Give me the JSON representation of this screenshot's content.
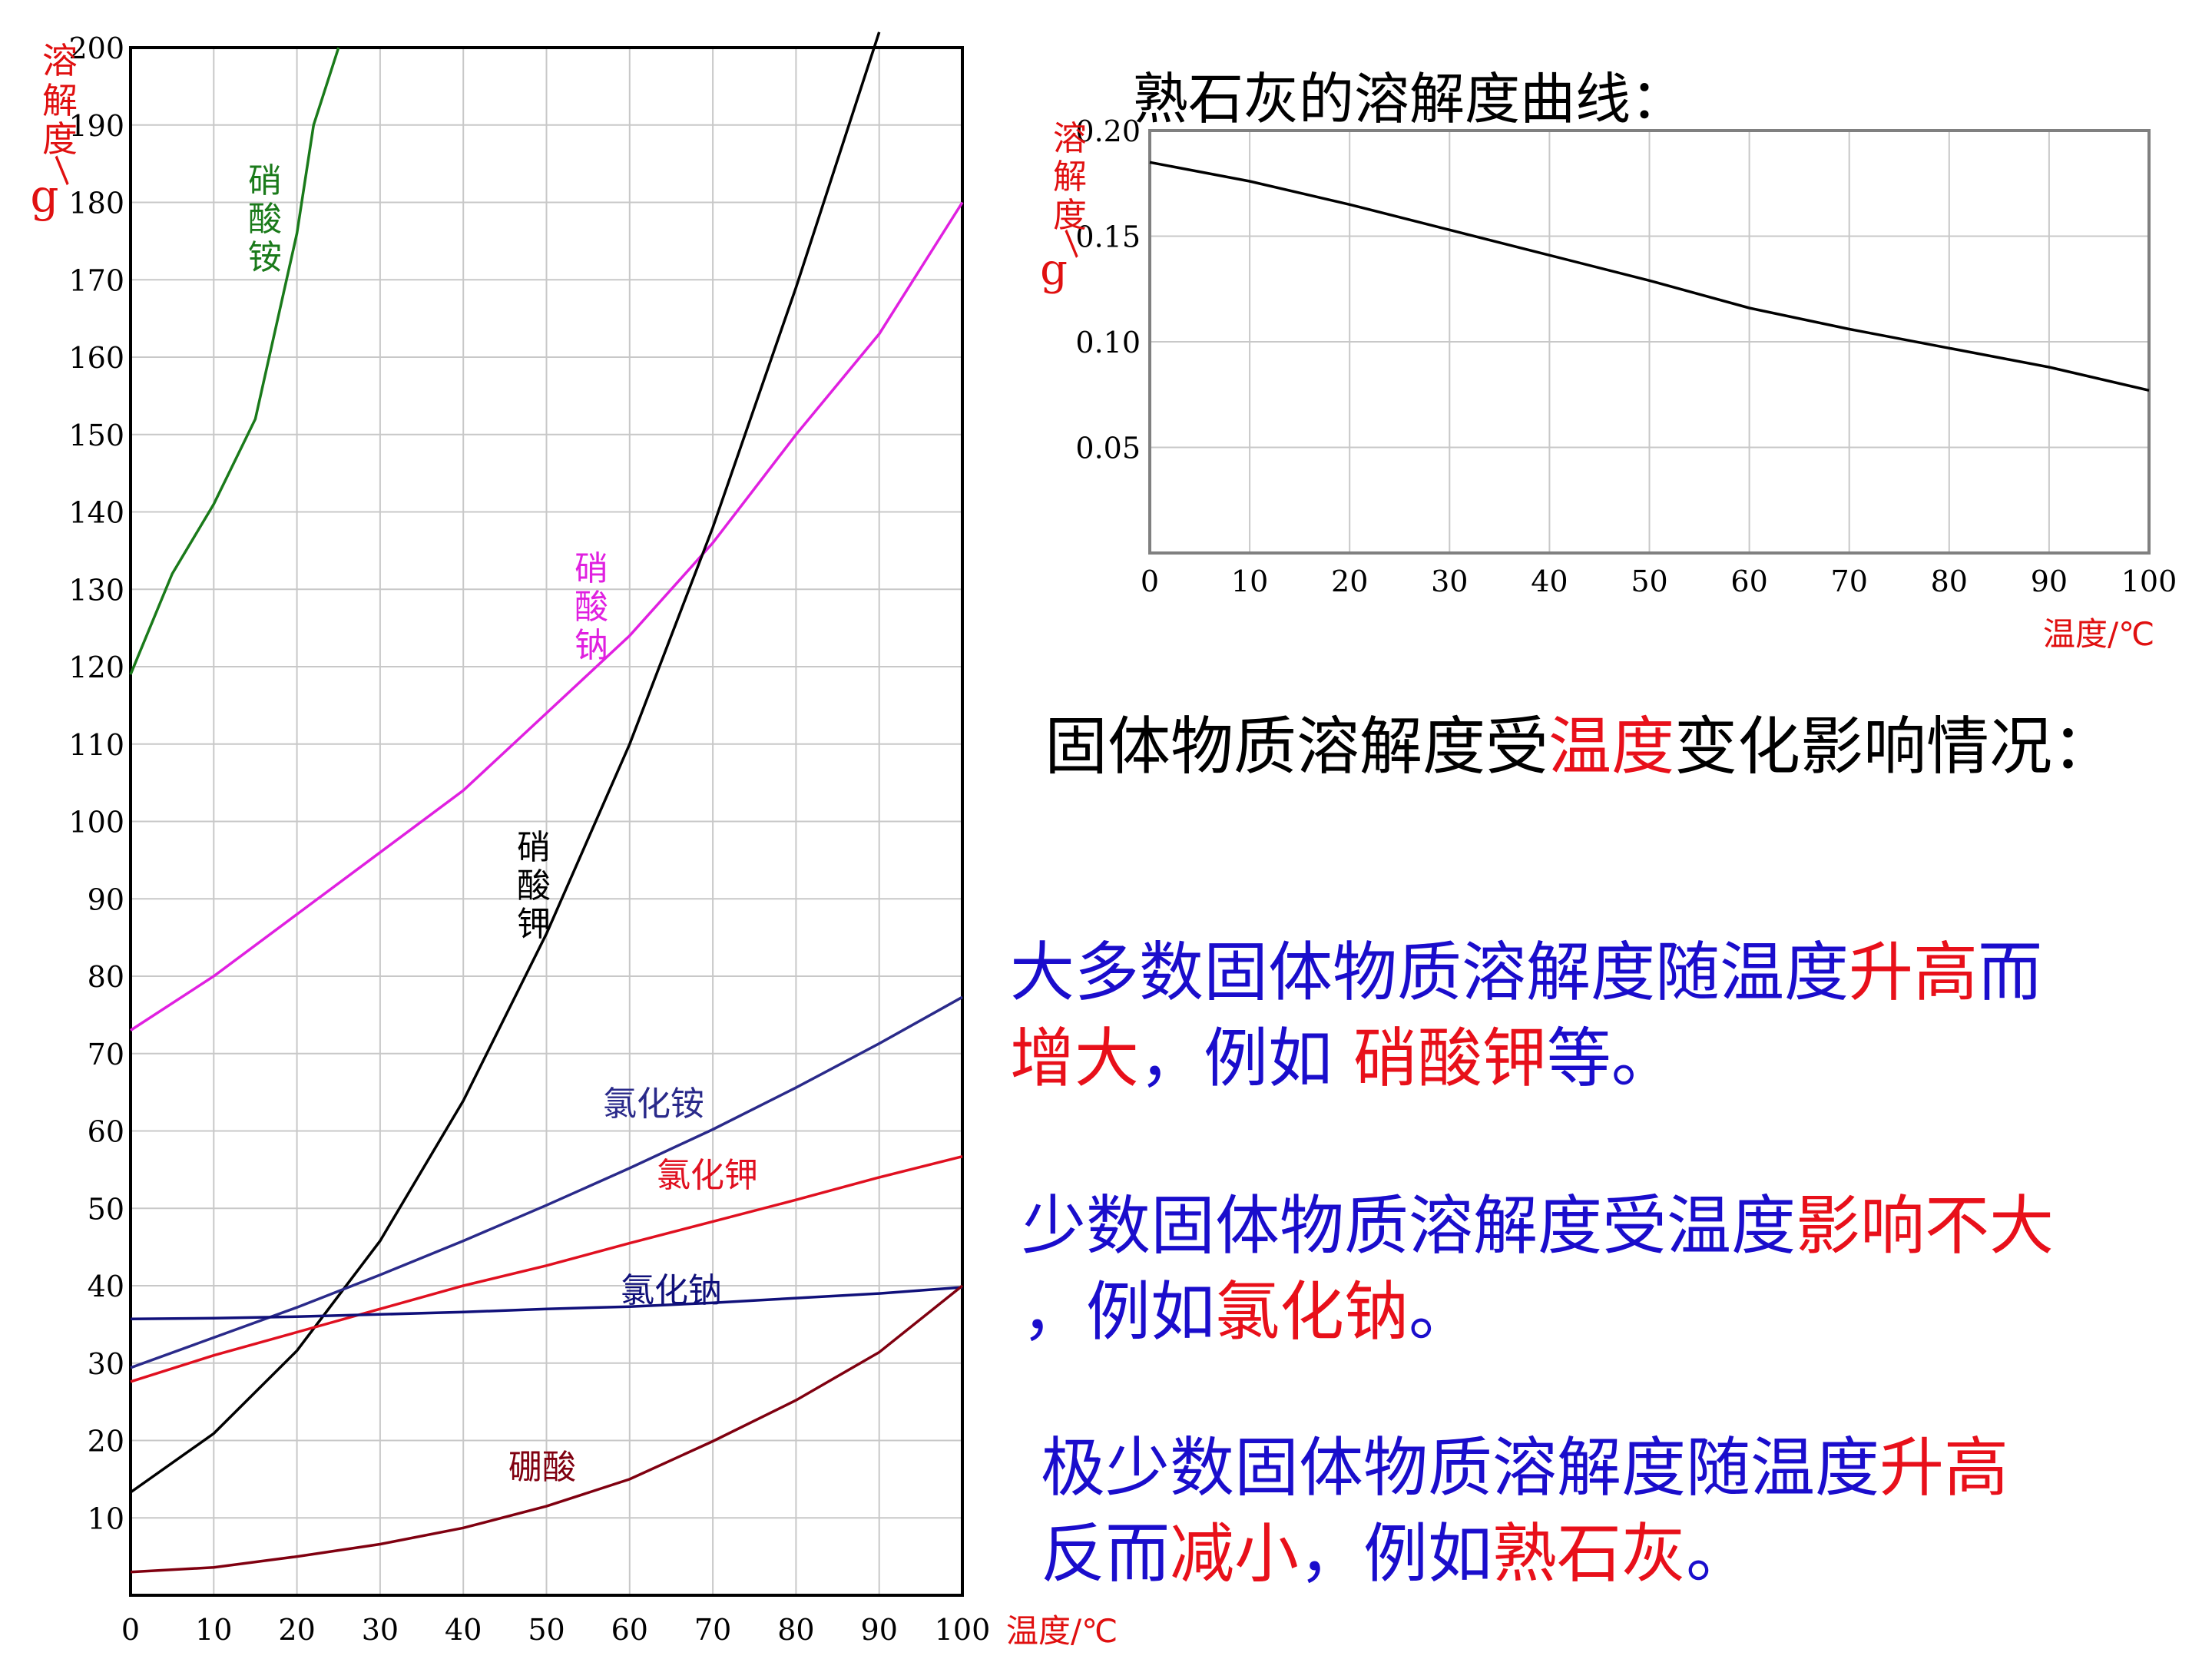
{
  "left_chart": {
    "type": "line",
    "ylabel": "溶解度/g",
    "xlabel": "温度/℃",
    "xlim": [
      0,
      100
    ],
    "ylim": [
      0,
      200
    ],
    "x_ticks": [
      0,
      10,
      20,
      30,
      40,
      50,
      60,
      70,
      80,
      90,
      100
    ],
    "y_ticks": [
      10,
      20,
      30,
      40,
      50,
      60,
      70,
      80,
      90,
      100,
      110,
      120,
      130,
      140,
      150,
      160,
      170,
      180,
      190,
      200
    ],
    "grid": true,
    "series": [
      {
        "name": "硝酸铵",
        "color": "#1a7a1a",
        "label_vertical": true,
        "points": [
          [
            0,
            119
          ],
          [
            5,
            132
          ],
          [
            10,
            141
          ],
          [
            15,
            152
          ],
          [
            20,
            176
          ],
          [
            22,
            190
          ],
          [
            25,
            200
          ]
        ]
      },
      {
        "name": "硝酸钠",
        "color": "#e020e0",
        "label_vertical": true,
        "points": [
          [
            0,
            73
          ],
          [
            10,
            80
          ],
          [
            20,
            88
          ],
          [
            30,
            96
          ],
          [
            40,
            104
          ],
          [
            50,
            114
          ],
          [
            60,
            124
          ],
          [
            70,
            136
          ],
          [
            80,
            150
          ],
          [
            90,
            163
          ],
          [
            100,
            180
          ]
        ]
      },
      {
        "name": "硝酸钾",
        "color": "#000000",
        "label_vertical": true,
        "points": [
          [
            0,
            13.3
          ],
          [
            10,
            20.9
          ],
          [
            20,
            31.6
          ],
          [
            30,
            45.8
          ],
          [
            40,
            63.9
          ],
          [
            50,
            85.5
          ],
          [
            60,
            110
          ],
          [
            70,
            138
          ],
          [
            80,
            169
          ],
          [
            90,
            202
          ]
        ]
      },
      {
        "name": "氯化铵",
        "color": "#2a2a8a",
        "label_vertical": false,
        "points": [
          [
            0,
            29.4
          ],
          [
            10,
            33.3
          ],
          [
            20,
            37.2
          ],
          [
            30,
            41.4
          ],
          [
            40,
            45.8
          ],
          [
            50,
            50.4
          ],
          [
            60,
            55.2
          ],
          [
            70,
            60.2
          ],
          [
            80,
            65.6
          ],
          [
            90,
            71.3
          ],
          [
            100,
            77.3
          ]
        ]
      },
      {
        "name": "氯化钾",
        "color": "#e01020",
        "label_vertical": false,
        "points": [
          [
            0,
            27.6
          ],
          [
            10,
            31
          ],
          [
            20,
            34
          ],
          [
            30,
            37
          ],
          [
            40,
            40
          ],
          [
            50,
            42.6
          ],
          [
            60,
            45.5
          ],
          [
            70,
            48.3
          ],
          [
            80,
            51.1
          ],
          [
            90,
            54
          ],
          [
            100,
            56.7
          ]
        ]
      },
      {
        "name": "氯化钠",
        "color": "#10107a",
        "label_vertical": false,
        "points": [
          [
            0,
            35.7
          ],
          [
            10,
            35.8
          ],
          [
            20,
            36
          ],
          [
            30,
            36.3
          ],
          [
            40,
            36.6
          ],
          [
            50,
            37
          ],
          [
            60,
            37.3
          ],
          [
            70,
            37.8
          ],
          [
            80,
            38.4
          ],
          [
            90,
            39
          ],
          [
            100,
            39.8
          ]
        ]
      },
      {
        "name": "硼酸",
        "color": "#800010",
        "label_vertical": false,
        "points": [
          [
            0,
            3
          ],
          [
            10,
            3.6
          ],
          [
            20,
            5
          ],
          [
            30,
            6.6
          ],
          [
            40,
            8.7
          ],
          [
            50,
            11.5
          ],
          [
            60,
            15
          ],
          [
            70,
            19.9
          ],
          [
            80,
            25.2
          ],
          [
            90,
            31.4
          ],
          [
            100,
            40
          ]
        ]
      }
    ]
  },
  "right_chart": {
    "type": "line",
    "title": "熟石灰的溶解度曲线：",
    "ylabel": "溶解度/g",
    "xlabel": "温度/℃",
    "xlim": [
      0,
      100
    ],
    "ylim": [
      0,
      0.2
    ],
    "x_ticks": [
      "0",
      "10",
      "20",
      "30",
      "40",
      "50",
      "60",
      "70",
      "80",
      "90",
      "100"
    ],
    "y_ticks": [
      "0.20",
      "0.15",
      "0.10",
      "0.05"
    ],
    "grid": true,
    "series": [
      {
        "name": "",
        "color": "#000000",
        "points": [
          [
            0,
            0.185
          ],
          [
            10,
            0.176
          ],
          [
            20,
            0.165
          ],
          [
            30,
            0.153
          ],
          [
            40,
            0.141
          ],
          [
            50,
            0.129
          ],
          [
            60,
            0.116
          ],
          [
            70,
            0.106
          ],
          [
            80,
            0.097
          ],
          [
            90,
            0.088
          ],
          [
            100,
            0.077
          ]
        ]
      }
    ]
  },
  "heading": {
    "pre": "固体物质溶解度受",
    "highlight": "温度",
    "post": "变化影响情况："
  },
  "para1": {
    "a": "大多数固体物质溶解度随温度",
    "b": "升高",
    "c": "而",
    "d": "增大",
    "e": "，例如 ",
    "f": "硝酸钾",
    "g": "等。"
  },
  "para2": {
    "a": "少数固体物质溶解度受温度",
    "b": "影响不大",
    "c": "，例如",
    "d": "氯化钠",
    "e": "。"
  },
  "para3": {
    "a": "极少数固体物质溶解度随温度",
    "b": "升高",
    "c": "反而",
    "d": "减小",
    "e": "，例如",
    "f": "熟石灰",
    "g": "。"
  }
}
